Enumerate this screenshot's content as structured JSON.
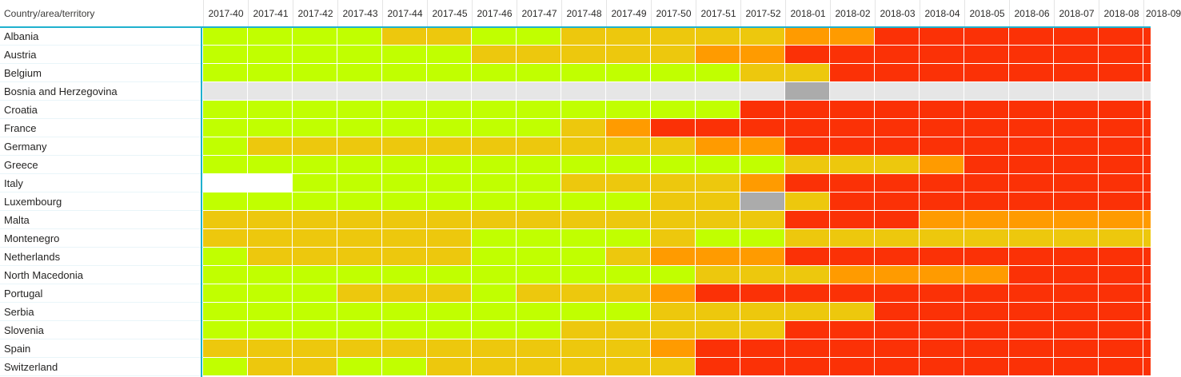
{
  "table": {
    "row_header_label": "Country/area/territory",
    "columns": [
      "2017-40",
      "2017-41",
      "2017-42",
      "2017-43",
      "2017-44",
      "2017-45",
      "2017-46",
      "2017-47",
      "2017-48",
      "2017-49",
      "2017-50",
      "2017-51",
      "2017-52",
      "2018-01",
      "2018-02",
      "2018-03",
      "2018-04",
      "2018-05",
      "2018-06",
      "2018-07",
      "2018-08",
      "2018-09"
    ],
    "last_column_partially_visible": true
  },
  "accents": {
    "grid_accent_color": "#1fb1ce",
    "row_separator_color": "#e9f5f9",
    "cell_border_color": "#ffffff",
    "header_text_color": "#3b3a39",
    "label_text_color": "#252423"
  },
  "chart_data": {
    "type": "heatmap",
    "title": "",
    "x_categories": [
      "2017-40",
      "2017-41",
      "2017-42",
      "2017-43",
      "2017-44",
      "2017-45",
      "2017-46",
      "2017-47",
      "2017-48",
      "2017-49",
      "2017-50",
      "2017-51",
      "2017-52",
      "2018-01",
      "2018-02",
      "2018-03",
      "2018-04",
      "2018-05",
      "2018-06",
      "2018-07",
      "2018-08",
      "2018-09"
    ],
    "y_categories": [
      "Albania",
      "Austria",
      "Belgium",
      "Bosnia and Herzegovina",
      "Croatia",
      "France",
      "Germany",
      "Greece",
      "Italy",
      "Luxembourg",
      "Malta",
      "Montenegro",
      "Netherlands",
      "North Macedonia",
      "Portugal",
      "Serbia",
      "Slovenia",
      "Spain",
      "Switzerland"
    ],
    "color_encoding": {
      "g": "#c1ff00",
      "y": "#edc80d",
      "o": "#ff9b00",
      "r": "#fb3106",
      "e": "#e6e6e6",
      "d": "#ababab",
      "w": "#ffffff"
    },
    "legend": "none",
    "rows": [
      {
        "name": "Albania",
        "cells": [
          "g",
          "g",
          "g",
          "g",
          "y",
          "y",
          "g",
          "g",
          "y",
          "y",
          "y",
          "y",
          "y",
          "o",
          "o",
          "r",
          "r",
          "r",
          "r",
          "r",
          "r",
          "r"
        ]
      },
      {
        "name": "Austria",
        "cells": [
          "g",
          "g",
          "g",
          "g",
          "g",
          "g",
          "y",
          "y",
          "y",
          "y",
          "y",
          "o",
          "o",
          "r",
          "r",
          "r",
          "r",
          "r",
          "r",
          "r",
          "r",
          "r"
        ]
      },
      {
        "name": "Belgium",
        "cells": [
          "g",
          "g",
          "g",
          "g",
          "g",
          "g",
          "g",
          "g",
          "g",
          "g",
          "g",
          "g",
          "y",
          "y",
          "r",
          "r",
          "r",
          "r",
          "r",
          "r",
          "r",
          "r"
        ]
      },
      {
        "name": "Bosnia and Herzegovina",
        "cells": [
          "e",
          "e",
          "e",
          "e",
          "e",
          "e",
          "e",
          "e",
          "e",
          "e",
          "e",
          "e",
          "e",
          "d",
          "e",
          "e",
          "e",
          "e",
          "e",
          "e",
          "e",
          "e"
        ]
      },
      {
        "name": "Croatia",
        "cells": [
          "g",
          "g",
          "g",
          "g",
          "g",
          "g",
          "g",
          "g",
          "g",
          "g",
          "g",
          "g",
          "r",
          "r",
          "r",
          "r",
          "r",
          "r",
          "r",
          "r",
          "r",
          "r"
        ]
      },
      {
        "name": "France",
        "cells": [
          "g",
          "g",
          "g",
          "g",
          "g",
          "g",
          "g",
          "g",
          "y",
          "o",
          "r",
          "r",
          "r",
          "r",
          "r",
          "r",
          "r",
          "r",
          "r",
          "r",
          "r",
          "r"
        ]
      },
      {
        "name": "Germany",
        "cells": [
          "g",
          "y",
          "y",
          "y",
          "y",
          "y",
          "y",
          "y",
          "y",
          "y",
          "y",
          "o",
          "o",
          "r",
          "r",
          "r",
          "r",
          "r",
          "r",
          "r",
          "r",
          "r"
        ]
      },
      {
        "name": "Greece",
        "cells": [
          "g",
          "g",
          "g",
          "g",
          "g",
          "g",
          "g",
          "g",
          "g",
          "g",
          "g",
          "g",
          "g",
          "y",
          "y",
          "y",
          "o",
          "r",
          "r",
          "r",
          "r",
          "r"
        ]
      },
      {
        "name": "Italy",
        "cells": [
          "w",
          "w",
          "g",
          "g",
          "g",
          "g",
          "g",
          "g",
          "y",
          "y",
          "y",
          "y",
          "o",
          "r",
          "r",
          "r",
          "r",
          "r",
          "r",
          "r",
          "r",
          "r"
        ]
      },
      {
        "name": "Luxembourg",
        "cells": [
          "g",
          "g",
          "g",
          "g",
          "g",
          "g",
          "g",
          "g",
          "g",
          "g",
          "y",
          "y",
          "d",
          "y",
          "r",
          "r",
          "r",
          "r",
          "r",
          "r",
          "r",
          "r"
        ]
      },
      {
        "name": "Malta",
        "cells": [
          "y",
          "y",
          "y",
          "y",
          "y",
          "y",
          "y",
          "y",
          "y",
          "y",
          "y",
          "y",
          "y",
          "r",
          "r",
          "r",
          "o",
          "o",
          "o",
          "o",
          "o",
          "o"
        ]
      },
      {
        "name": "Montenegro",
        "cells": [
          "y",
          "y",
          "y",
          "y",
          "y",
          "y",
          "g",
          "g",
          "g",
          "g",
          "y",
          "g",
          "g",
          "y",
          "y",
          "y",
          "y",
          "y",
          "y",
          "y",
          "y",
          "y"
        ]
      },
      {
        "name": "Netherlands",
        "cells": [
          "g",
          "y",
          "y",
          "y",
          "y",
          "y",
          "g",
          "g",
          "g",
          "y",
          "o",
          "o",
          "o",
          "r",
          "r",
          "r",
          "r",
          "r",
          "r",
          "r",
          "r",
          "r"
        ]
      },
      {
        "name": "North Macedonia",
        "cells": [
          "g",
          "g",
          "g",
          "g",
          "g",
          "g",
          "g",
          "g",
          "g",
          "g",
          "g",
          "y",
          "y",
          "y",
          "o",
          "o",
          "o",
          "o",
          "r",
          "r",
          "r",
          "r"
        ]
      },
      {
        "name": "Portugal",
        "cells": [
          "g",
          "g",
          "g",
          "y",
          "y",
          "y",
          "g",
          "y",
          "y",
          "y",
          "o",
          "r",
          "r",
          "r",
          "r",
          "r",
          "r",
          "r",
          "r",
          "r",
          "r",
          "r"
        ]
      },
      {
        "name": "Serbia",
        "cells": [
          "g",
          "g",
          "g",
          "g",
          "g",
          "g",
          "g",
          "g",
          "g",
          "g",
          "y",
          "y",
          "y",
          "y",
          "y",
          "r",
          "r",
          "r",
          "r",
          "r",
          "r",
          "r"
        ]
      },
      {
        "name": "Slovenia",
        "cells": [
          "g",
          "g",
          "g",
          "g",
          "g",
          "g",
          "g",
          "g",
          "y",
          "y",
          "y",
          "y",
          "y",
          "r",
          "r",
          "r",
          "r",
          "r",
          "r",
          "r",
          "r",
          "r"
        ]
      },
      {
        "name": "Spain",
        "cells": [
          "y",
          "y",
          "y",
          "y",
          "y",
          "y",
          "y",
          "y",
          "y",
          "y",
          "o",
          "r",
          "r",
          "r",
          "r",
          "r",
          "r",
          "r",
          "r",
          "r",
          "r",
          "r"
        ]
      },
      {
        "name": "Switzerland",
        "cells": [
          "g",
          "y",
          "y",
          "g",
          "g",
          "y",
          "y",
          "y",
          "y",
          "y",
          "y",
          "r",
          "r",
          "r",
          "r",
          "r",
          "r",
          "r",
          "r",
          "r",
          "r",
          "r"
        ]
      }
    ]
  }
}
